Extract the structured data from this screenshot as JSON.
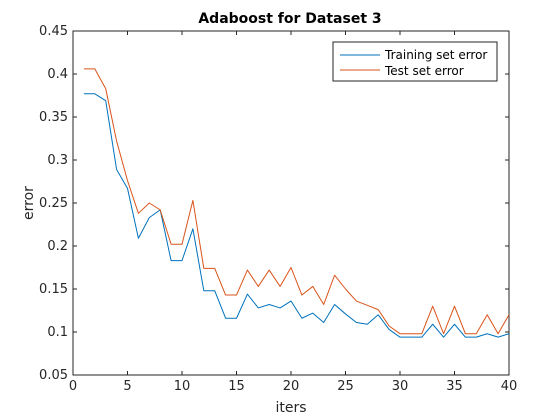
{
  "chart_data": {
    "type": "line",
    "title": "Adaboost for Dataset 3",
    "xlabel": "iters",
    "ylabel": "error",
    "xlim": [
      0,
      40
    ],
    "ylim": [
      0.05,
      0.45
    ],
    "xticks": [
      0,
      5,
      10,
      15,
      20,
      25,
      30,
      35,
      40
    ],
    "yticks": [
      0.05,
      0.1,
      0.15,
      0.2,
      0.25,
      0.3,
      0.35,
      0.4,
      0.45
    ],
    "xtick_labels": [
      "0",
      "5",
      "10",
      "15",
      "20",
      "25",
      "30",
      "35",
      "40"
    ],
    "ytick_labels": [
      "0.05",
      "0.1",
      "0.15",
      "0.2",
      "0.25",
      "0.3",
      "0.35",
      "0.4",
      "0.45"
    ],
    "grid": false,
    "legend_position": "top-right",
    "x": [
      1,
      2,
      3,
      4,
      5,
      6,
      7,
      8,
      9,
      10,
      11,
      12,
      13,
      14,
      15,
      16,
      17,
      18,
      19,
      20,
      21,
      22,
      23,
      24,
      25,
      26,
      27,
      28,
      29,
      30,
      31,
      32,
      33,
      34,
      35,
      36,
      37,
      38,
      39,
      40
    ],
    "series": [
      {
        "name": "Training set error",
        "color": "#0072BD",
        "values": [
          0.377,
          0.377,
          0.369,
          0.289,
          0.267,
          0.209,
          0.233,
          0.242,
          0.183,
          0.183,
          0.22,
          0.148,
          0.148,
          0.116,
          0.116,
          0.144,
          0.128,
          0.132,
          0.128,
          0.136,
          0.116,
          0.122,
          0.111,
          0.132,
          0.121,
          0.111,
          0.109,
          0.12,
          0.103,
          0.094,
          0.094,
          0.094,
          0.109,
          0.094,
          0.109,
          0.094,
          0.094,
          0.098,
          0.094,
          0.098
        ]
      },
      {
        "name": "Test set error",
        "color": "#D95319",
        "values": [
          0.406,
          0.406,
          0.383,
          0.322,
          0.276,
          0.238,
          0.25,
          0.242,
          0.202,
          0.202,
          0.253,
          0.174,
          0.174,
          0.143,
          0.143,
          0.172,
          0.153,
          0.172,
          0.153,
          0.175,
          0.143,
          0.153,
          0.132,
          0.166,
          0.15,
          0.136,
          0.131,
          0.126,
          0.107,
          0.098,
          0.098,
          0.098,
          0.13,
          0.098,
          0.13,
          0.098,
          0.098,
          0.12,
          0.098,
          0.12
        ]
      }
    ]
  }
}
